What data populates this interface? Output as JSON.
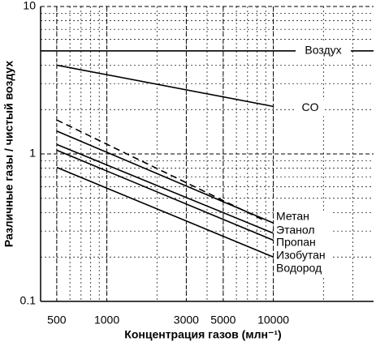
{
  "chart_data": {
    "type": "line",
    "xlabel": "Концентрация газов (млн⁻¹)",
    "ylabel": "Различные газы / чистый воздух",
    "xscale": "log",
    "yscale": "log",
    "grid": true,
    "xlim": [
      400,
      40000
    ],
    "ylim": [
      0.1,
      10
    ],
    "xticks": [
      500,
      1000,
      3000,
      5000,
      10000
    ],
    "yticks": [
      0.1,
      1,
      10
    ],
    "series": [
      {
        "name": "Воздух",
        "color": "#000000",
        "x": [
          400,
          40000
        ],
        "values": [
          5,
          5
        ]
      },
      {
        "name": "CO",
        "color": "#000000",
        "x": [
          500,
          10000
        ],
        "values": [
          4.0,
          2.1
        ]
      },
      {
        "name": "Метан",
        "color": "#000000",
        "x": [
          500,
          10000
        ],
        "values": [
          1.43,
          0.34
        ]
      },
      {
        "name": "Этанол",
        "color": "#000000",
        "dashed": true,
        "x": [
          500,
          9000
        ],
        "values": [
          1.7,
          0.35
        ]
      },
      {
        "name": "Пропан",
        "color": "#000000",
        "x": [
          500,
          10000
        ],
        "values": [
          1.16,
          0.29
        ]
      },
      {
        "name": "Изобутан",
        "color": "#000000",
        "x": [
          500,
          10000
        ],
        "values": [
          1.06,
          0.26
        ]
      },
      {
        "name": "Водород",
        "color": "#000000",
        "x": [
          500,
          10000
        ],
        "values": [
          0.81,
          0.2
        ]
      }
    ]
  }
}
